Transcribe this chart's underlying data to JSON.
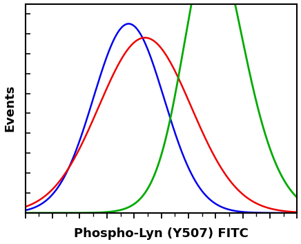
{
  "title": "",
  "xlabel": "Phospho-Lyn (Y507) FITC",
  "ylabel": "Events",
  "xlabel_fontsize": 13,
  "ylabel_fontsize": 13,
  "xlabel_fontweight": "bold",
  "ylabel_fontweight": "bold",
  "background_color": "#ffffff",
  "plot_bg_color": "#ffffff",
  "curves": [
    {
      "color": "#0000ee",
      "components": [
        {
          "mean": 0.38,
          "std": 0.13,
          "amplitude": 0.95
        }
      ],
      "linewidth": 1.8,
      "label": "Blue"
    },
    {
      "color": "#ee0000",
      "components": [
        {
          "mean": 0.44,
          "std": 0.17,
          "amplitude": 0.88
        }
      ],
      "linewidth": 1.8,
      "label": "Red"
    },
    {
      "color": "#00aa00",
      "components": [
        {
          "mean": 0.72,
          "std": 0.13,
          "amplitude": 0.78
        },
        {
          "mean": 0.67,
          "std": 0.09,
          "amplitude": 0.62
        }
      ],
      "linewidth": 2.0,
      "label": "Green"
    }
  ],
  "xlim": [
    0.0,
    1.0
  ],
  "ylim": [
    0.0,
    1.05
  ],
  "x_major_ticks": [
    0.0,
    0.1,
    0.2,
    0.3,
    0.4,
    0.5,
    0.6,
    0.7,
    0.8,
    0.9,
    1.0
  ],
  "x_minor_ticks": [
    0.05,
    0.15,
    0.25,
    0.35,
    0.45,
    0.55,
    0.65,
    0.75,
    0.85,
    0.95
  ],
  "y_major_ticks": [
    0.0,
    0.1,
    0.2,
    0.3,
    0.4,
    0.5,
    0.6,
    0.7,
    0.8,
    0.9,
    1.0
  ],
  "spine_linewidth": 1.5
}
